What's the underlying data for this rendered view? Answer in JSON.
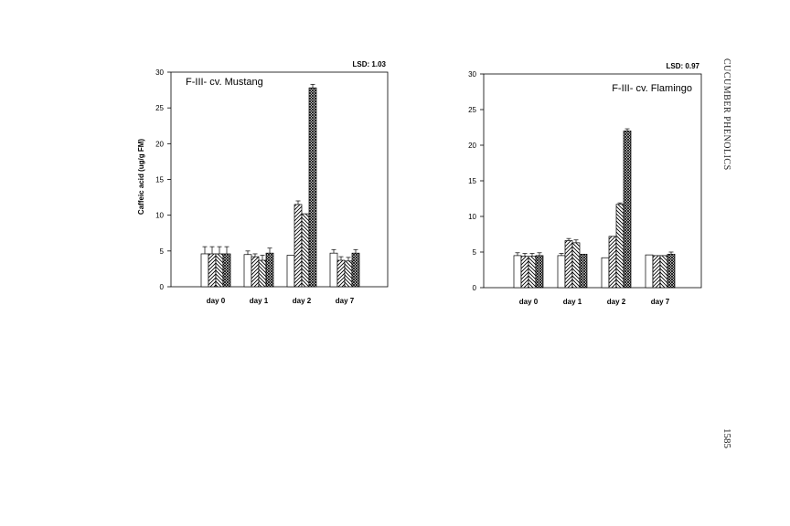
{
  "page": {
    "running_head": "CUCUMBER PHENOLICS",
    "page_number": "1585"
  },
  "chart_data": [
    {
      "type": "bar",
      "title": "F-III- cv. Mustang",
      "lsd_label": "LSD: 1.03",
      "ylabel": "Caffeic acid (ug/g FM)",
      "xlabel": "",
      "ylim": [
        0,
        30
      ],
      "yticks": [
        0,
        5,
        10,
        15,
        20,
        25,
        30
      ],
      "grid": false,
      "categories": [
        "day 0",
        "day 1",
        "day 2",
        "day 7"
      ],
      "series": [
        {
          "values": [
            4.6,
            4.5,
            4.4,
            4.7
          ],
          "errors": [
            1.0,
            0.5,
            0.0,
            0.5
          ]
        },
        {
          "values": [
            4.6,
            4.2,
            11.5,
            3.7
          ],
          "errors": [
            1.0,
            0.4,
            0.5,
            0.5
          ]
        },
        {
          "values": [
            4.6,
            3.7,
            10.2,
            3.6
          ],
          "errors": [
            1.0,
            0.7,
            0.0,
            0.5
          ]
        },
        {
          "values": [
            4.6,
            4.7,
            27.8,
            4.7
          ],
          "errors": [
            1.0,
            0.7,
            0.5,
            0.5
          ]
        }
      ]
    },
    {
      "type": "bar",
      "title": "F-III- cv. Flamingo",
      "lsd_label": "LSD: 0.97",
      "ylabel": "",
      "xlabel": "",
      "ylim": [
        0,
        30
      ],
      "yticks": [
        0,
        5,
        10,
        15,
        20,
        25,
        30
      ],
      "grid": false,
      "categories": [
        "day 0",
        "day 1",
        "day 2",
        "day 7"
      ],
      "series": [
        {
          "values": [
            4.5,
            4.5,
            4.2,
            4.6
          ],
          "errors": [
            0.4,
            0.3,
            0.0,
            0.0
          ]
        },
        {
          "values": [
            4.4,
            6.6,
            7.2,
            4.5
          ],
          "errors": [
            0.4,
            0.3,
            0.0,
            0.0
          ]
        },
        {
          "values": [
            4.4,
            6.3,
            11.7,
            4.5
          ],
          "errors": [
            0.4,
            0.4,
            0.2,
            0.0
          ]
        },
        {
          "values": [
            4.5,
            4.7,
            22.0,
            4.7
          ],
          "errors": [
            0.4,
            0.0,
            0.3,
            0.3
          ]
        }
      ]
    }
  ]
}
